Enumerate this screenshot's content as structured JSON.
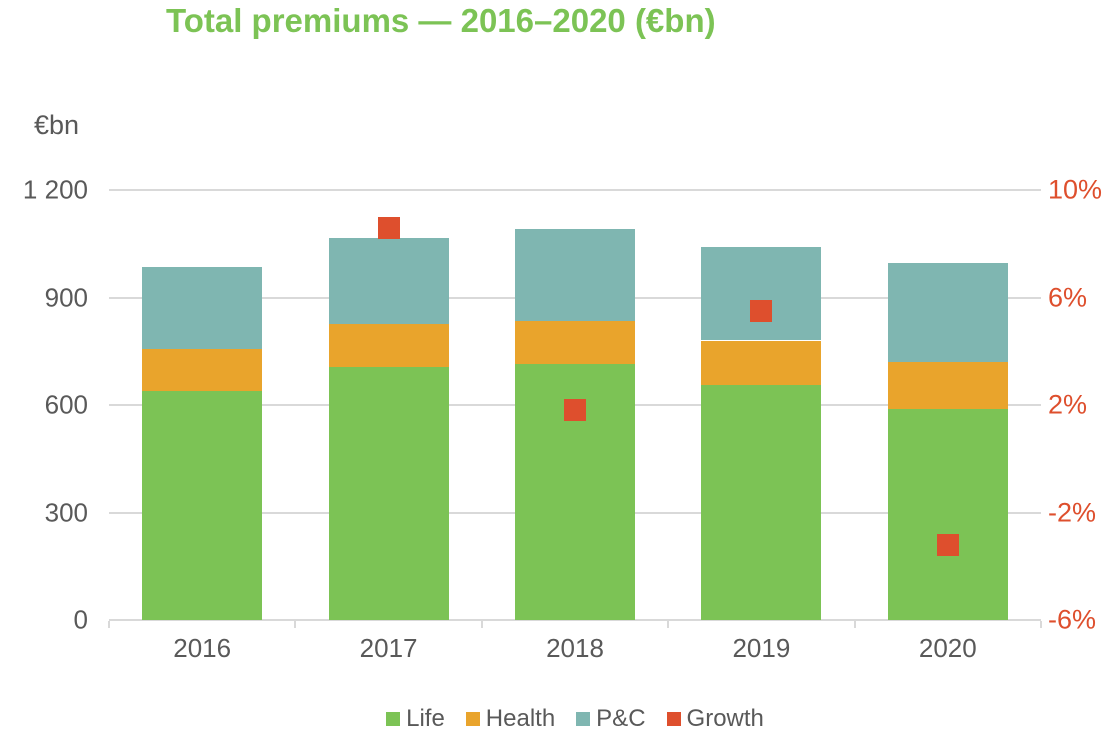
{
  "title": "Total premiums — 2016–2020 (€bn)",
  "left_axis": {
    "unit_label": "€bn",
    "ticks": [
      {
        "label": "1 200",
        "value": 1200
      },
      {
        "label": "900",
        "value": 900
      },
      {
        "label": "600",
        "value": 600
      },
      {
        "label": "300",
        "value": 300
      },
      {
        "label": "0",
        "value": 0
      }
    ]
  },
  "right_axis": {
    "ticks": [
      {
        "label": "10%",
        "value": 10
      },
      {
        "label": "6%",
        "value": 6
      },
      {
        "label": "2%",
        "value": 2
      },
      {
        "label": "-2%",
        "value": -2
      },
      {
        "label": "-6%",
        "value": -6
      }
    ]
  },
  "chart_data": {
    "type": "bar",
    "stacked": true,
    "title": "Total premiums — 2016–2020 (€bn)",
    "categories": [
      "2016",
      "2017",
      "2018",
      "2019",
      "2020"
    ],
    "series": [
      {
        "name": "Life",
        "color": "#7CC355",
        "values": [
          640,
          705,
          715,
          655,
          590
        ]
      },
      {
        "name": "Health",
        "color": "#E9A42C",
        "values": [
          115,
          120,
          120,
          125,
          130
        ]
      },
      {
        "name": "P&C",
        "color": "#7FB6B1",
        "values": [
          230,
          240,
          255,
          260,
          275
        ]
      }
    ],
    "overlay": {
      "name": "Growth",
      "type": "scatter",
      "marker": "square",
      "color": "#DE4F2D",
      "axis": "right",
      "values": [
        null,
        8.6,
        1.8,
        5.5,
        -3.2
      ]
    },
    "ylim_left": [
      0,
      1200
    ],
    "ylim_right": [
      -6,
      10
    ],
    "left_axis_label": "€bn",
    "grid": true,
    "legend_position": "bottom"
  },
  "legend": [
    {
      "label": "Life",
      "color": "#7CC355"
    },
    {
      "label": "Health",
      "color": "#E9A42C"
    },
    {
      "label": "P&C",
      "color": "#7FB6B1"
    },
    {
      "label": "Growth",
      "color": "#DE4F2D"
    }
  ],
  "colors": {
    "title": "#7CC355",
    "axis_text": "#595959",
    "right_axis_text": "#DE4F2D",
    "gridline": "#D9D9D9",
    "axis_line": "#D9D9D9"
  }
}
